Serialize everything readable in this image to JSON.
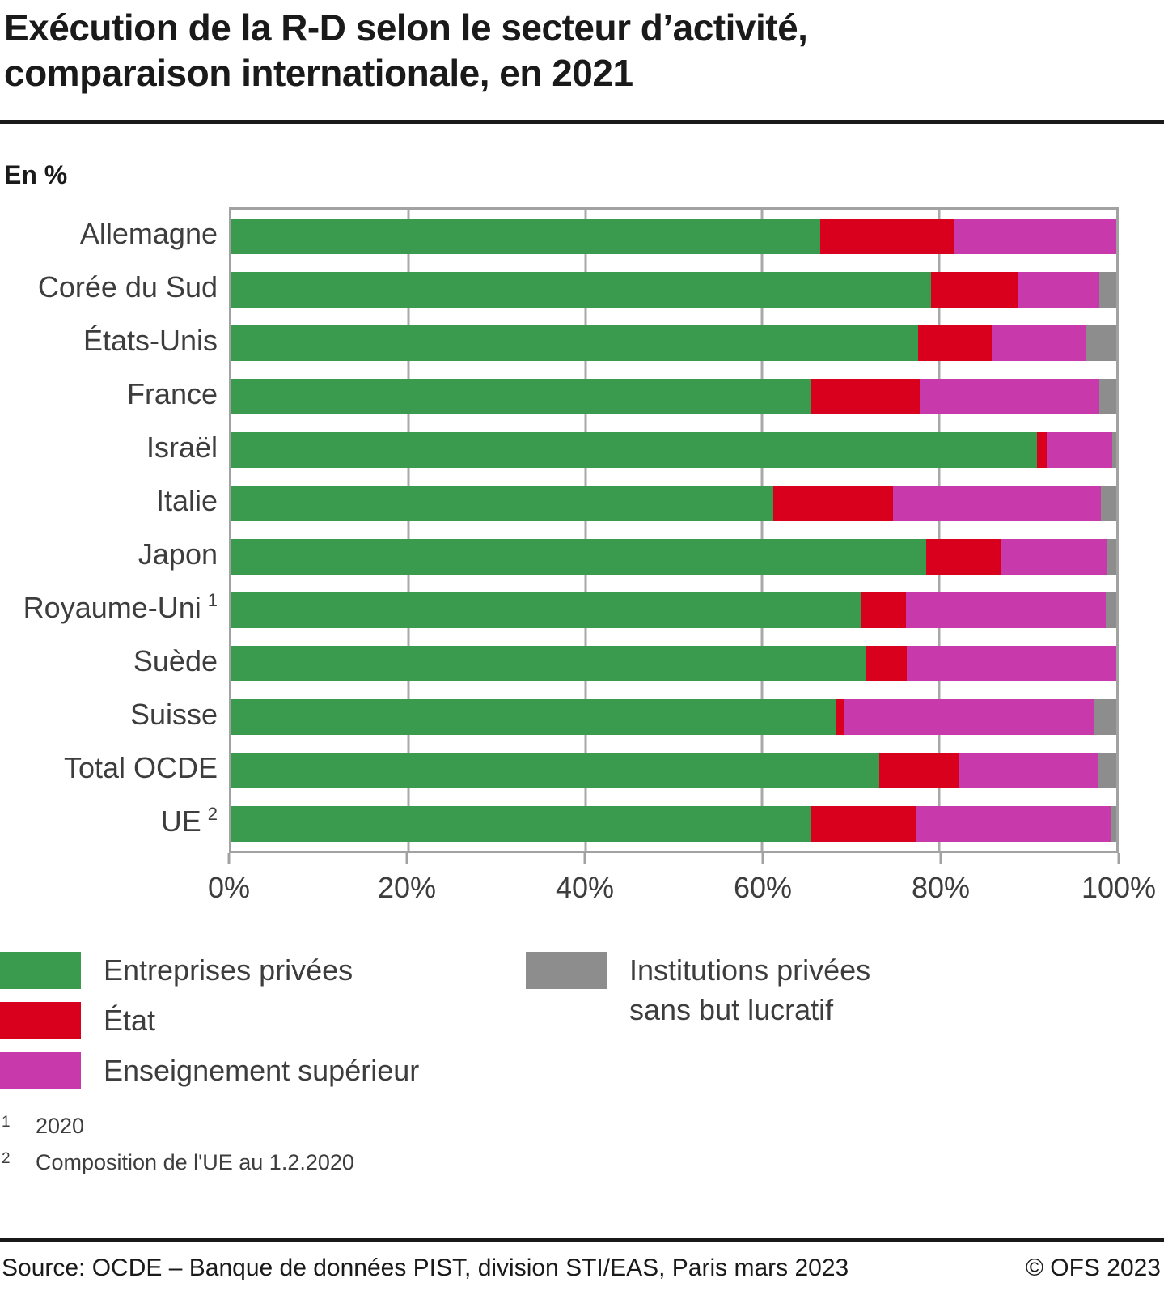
{
  "title": {
    "line1": "Exécution de la R-D selon le secteur d’activité,",
    "line2": "comparaison internationale, en 2021"
  },
  "unit_label": "En %",
  "chart_data": {
    "type": "bar",
    "stacked": true,
    "orientation": "horizontal",
    "title": "Exécution de la R-D selon le secteur d’activité, comparaison internationale, en 2021",
    "unit": "En %",
    "xlim": [
      0,
      100
    ],
    "x_ticks": [
      "0%",
      "20%",
      "40%",
      "60%",
      "80%",
      "100%"
    ],
    "grid": "vertical",
    "legend_position": "bottom",
    "categories": [
      {
        "label": "Allemagne",
        "footnote": ""
      },
      {
        "label": "Corée du Sud",
        "footnote": ""
      },
      {
        "label": "États-Unis",
        "footnote": ""
      },
      {
        "label": "France",
        "footnote": ""
      },
      {
        "label": "Israël",
        "footnote": ""
      },
      {
        "label": "Italie",
        "footnote": ""
      },
      {
        "label": "Japon",
        "footnote": ""
      },
      {
        "label": "Royaume-Uni",
        "footnote": "1"
      },
      {
        "label": "Suède",
        "footnote": ""
      },
      {
        "label": "Suisse",
        "footnote": ""
      },
      {
        "label": "Total OCDE",
        "footnote": ""
      },
      {
        "label": "UE",
        "footnote": "2"
      }
    ],
    "series": [
      {
        "name": "Entreprises privées",
        "color": "#3A9B4F",
        "values": [
          66.5,
          79.1,
          77.6,
          65.5,
          91.0,
          61.2,
          78.5,
          71.1,
          71.8,
          68.3,
          73.2,
          65.5
        ]
      },
      {
        "name": "État",
        "color": "#D8001C",
        "values": [
          15.2,
          9.8,
          8.3,
          12.3,
          1.1,
          13.6,
          8.5,
          5.1,
          4.5,
          0.9,
          9.0,
          11.8
        ]
      },
      {
        "name": "Enseignement supérieur",
        "color": "#C839AC",
        "values": [
          18.3,
          9.2,
          10.6,
          20.3,
          7.4,
          23.5,
          11.9,
          22.6,
          23.7,
          28.3,
          15.7,
          22.1
        ]
      },
      {
        "name": "Institutions privées sans but lucratif",
        "color": "#8D8D8D",
        "values": [
          0.0,
          1.9,
          3.5,
          1.9,
          0.5,
          1.7,
          1.1,
          1.2,
          0.0,
          2.5,
          2.1,
          0.6
        ]
      }
    ]
  },
  "legend": {
    "items": [
      {
        "label": "Entreprises privées",
        "color": "#3A9B4F"
      },
      {
        "label": "État",
        "color": "#D8001C"
      },
      {
        "label": "Enseignement supérieur",
        "color": "#C839AC"
      },
      {
        "line1": "Institutions privées",
        "line2": "sans but lucratif",
        "color": "#8D8D8D"
      }
    ]
  },
  "footnotes": [
    {
      "marker": "1",
      "text": "2020"
    },
    {
      "marker": "2",
      "text": "Composition de l'UE au 1.2.2020"
    }
  ],
  "footer": {
    "source": "Source: OCDE – Banque de données PIST, division STI/EAS, Paris mars 2023",
    "copyright": "© OFS 2023"
  }
}
